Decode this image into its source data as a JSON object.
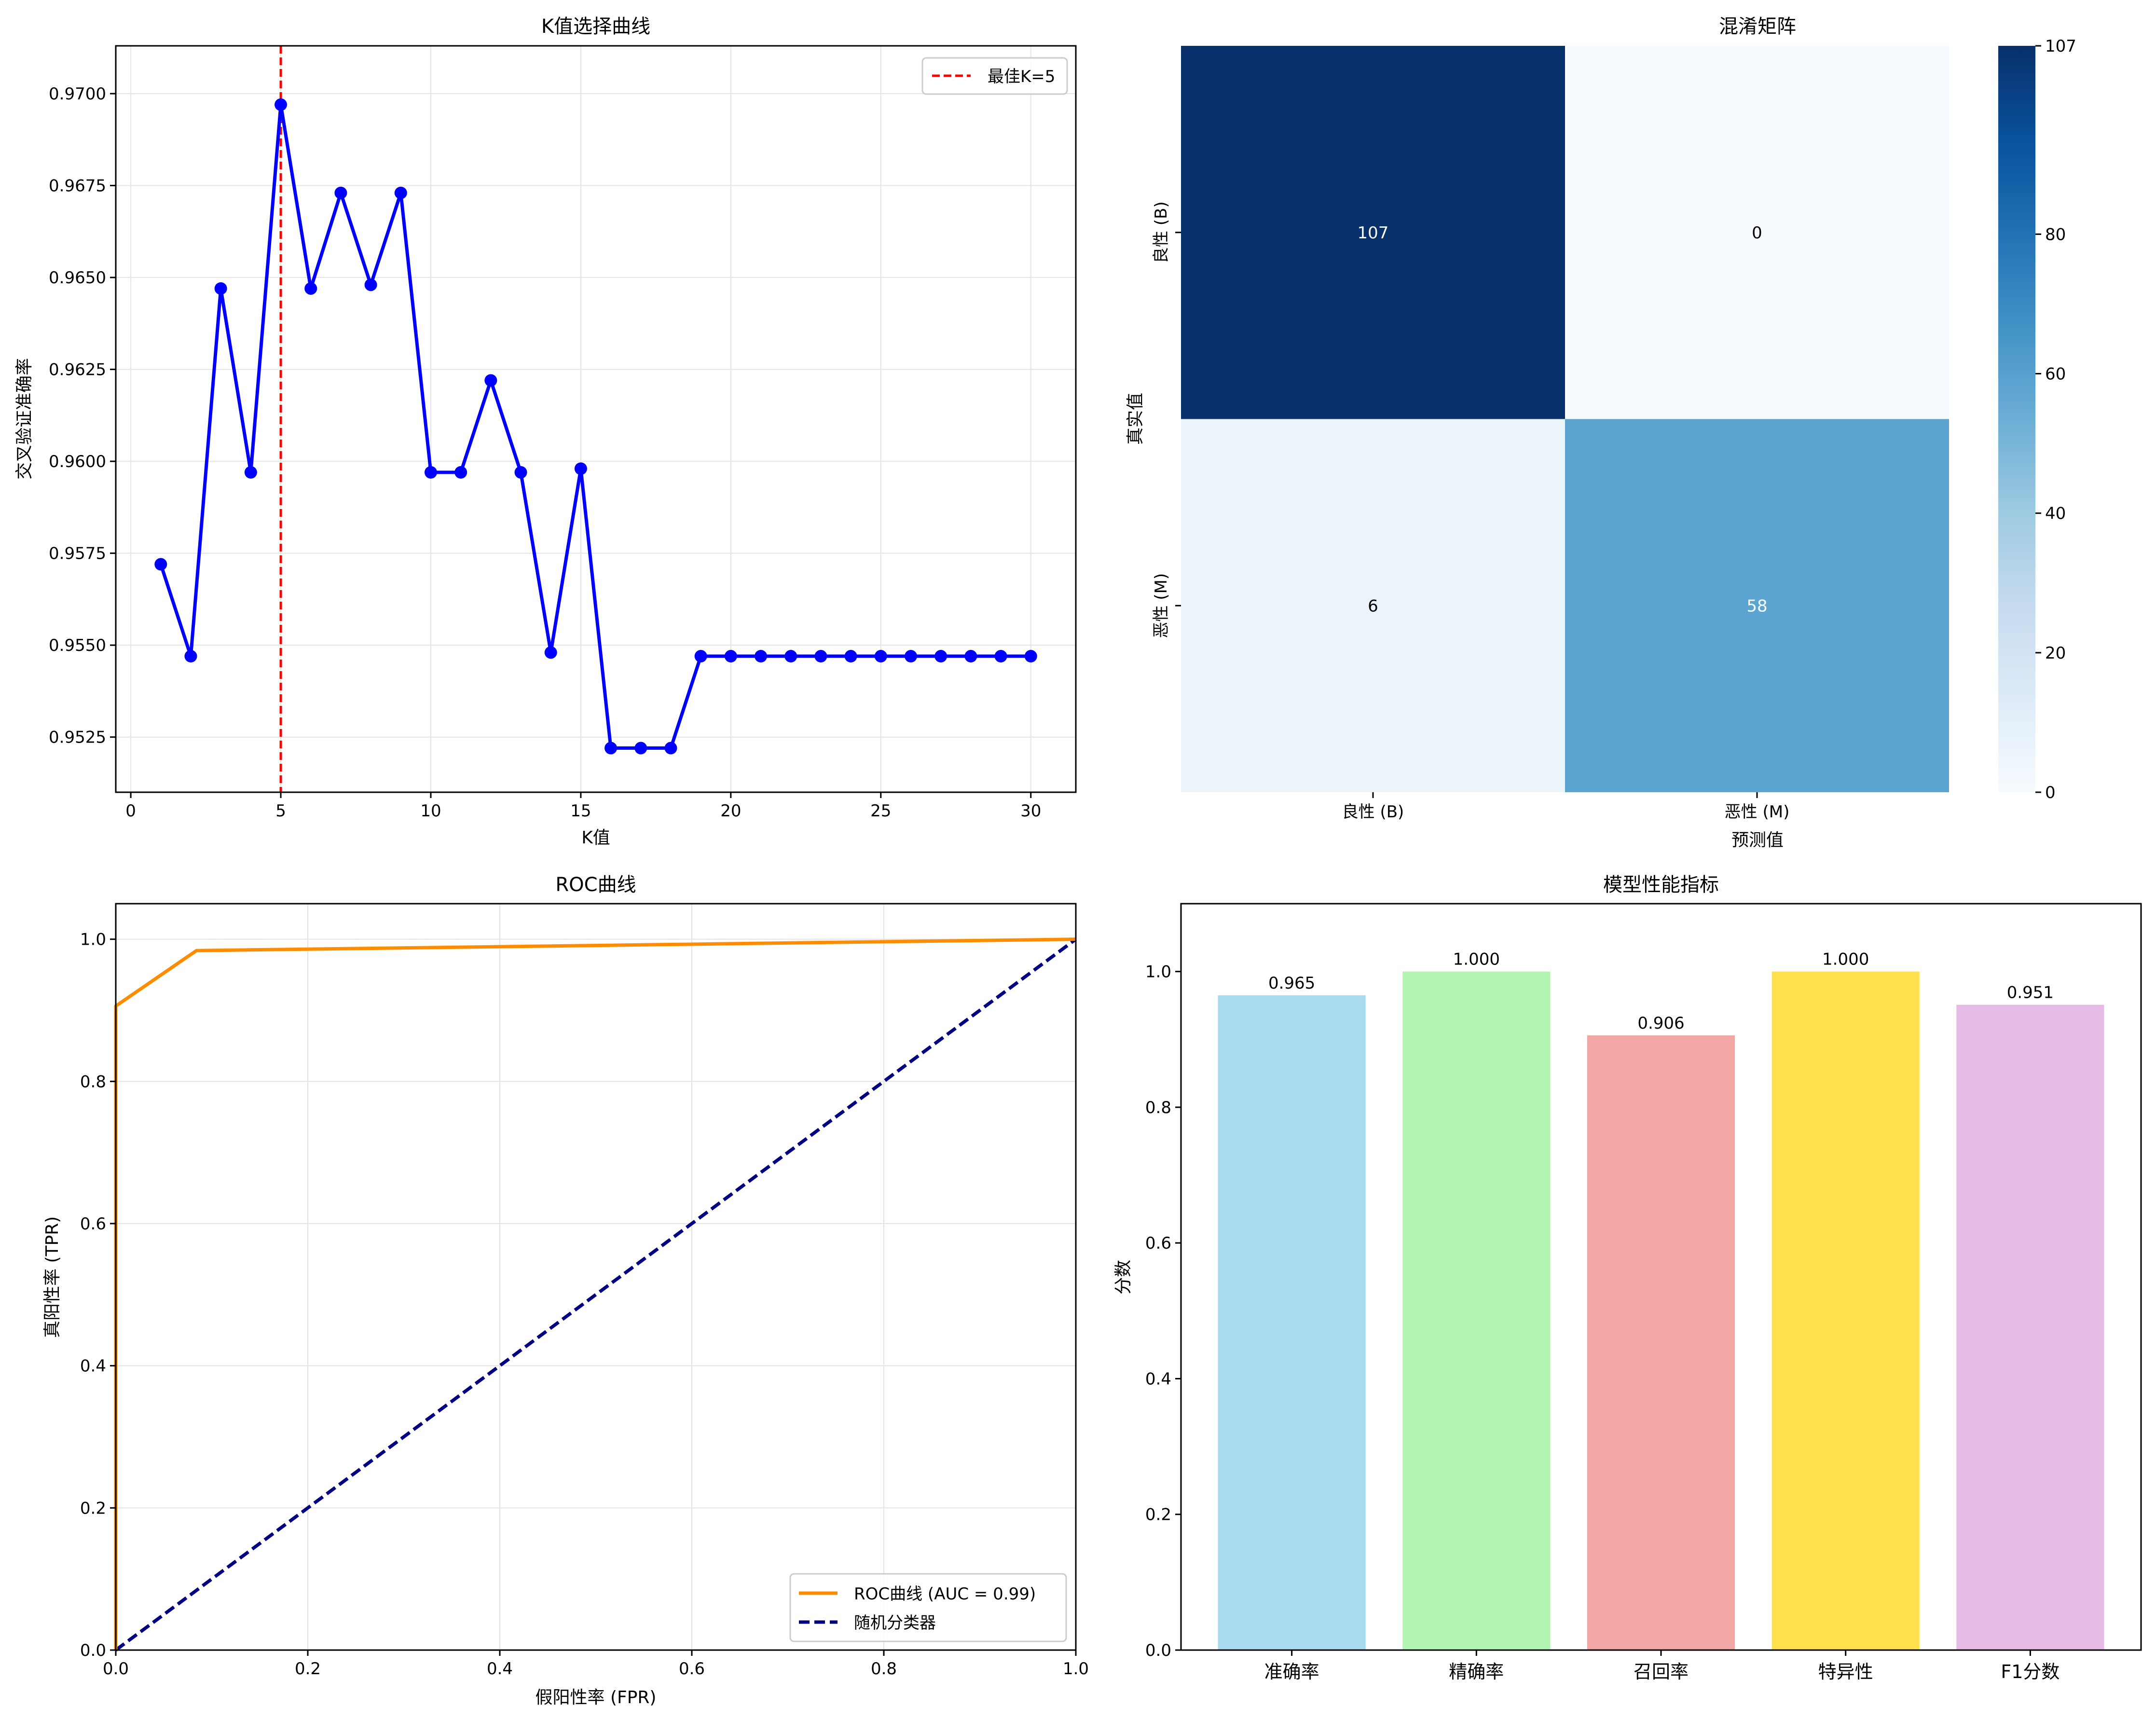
{
  "chart_data": [
    {
      "type": "line",
      "title": "K值选择曲线",
      "xlabel": "K值",
      "ylabel": "交叉验证准确率",
      "xlim": [
        -0.5,
        31.5
      ],
      "ylim": [
        0.951,
        0.9713
      ],
      "xticks": [
        0,
        5,
        10,
        15,
        20,
        25,
        30
      ],
      "yticks": [
        0.9525,
        0.955,
        0.9575,
        0.96,
        0.9625,
        0.965,
        0.9675,
        0.97
      ],
      "grid": true,
      "legend": "top-right",
      "series": [
        {
          "color": "#0000ff",
          "x": [
            1,
            2,
            3,
            4,
            5,
            6,
            7,
            8,
            9,
            10,
            11,
            12,
            13,
            14,
            15,
            16,
            17,
            18,
            19,
            20,
            21,
            22,
            23,
            24,
            25,
            26,
            27,
            28,
            29,
            30
          ],
          "y": [
            0.9572,
            0.9547,
            0.9647,
            0.9597,
            0.9697,
            0.9647,
            0.9673,
            0.9648,
            0.9673,
            0.9597,
            0.9597,
            0.9622,
            0.9597,
            0.9548,
            0.9598,
            0.9522,
            0.9522,
            0.9522,
            0.9547,
            0.9547,
            0.9547,
            0.9547,
            0.9547,
            0.9547,
            0.9547,
            0.9547,
            0.9547,
            0.9547,
            0.9547,
            0.9547
          ]
        }
      ],
      "vline": {
        "x": 5,
        "label": "最佳K=5",
        "color": "#ff0000"
      }
    },
    {
      "type": "heatmap",
      "title": "混淆矩阵",
      "xlabel": "预测值",
      "ylabel": "真实值",
      "xcategories": [
        "良性 (B)",
        "恶性 (M)"
      ],
      "ycategories": [
        "良性 (B)",
        "恶性 (M)"
      ],
      "values": [
        [
          107,
          0
        ],
        [
          6,
          58
        ]
      ],
      "colorbar_ticks": [
        0,
        20,
        40,
        60,
        80,
        107
      ],
      "vmin": 0,
      "vmax": 107,
      "colormap": "Blues"
    },
    {
      "type": "line",
      "title": "ROC曲线",
      "xlabel": "假阳性率 (FPR)",
      "ylabel": "真阳性率 (TPR)",
      "xlim": [
        0,
        1
      ],
      "ylim": [
        0,
        1.05
      ],
      "xticks": [
        0.0,
        0.2,
        0.4,
        0.6,
        0.8,
        1.0
      ],
      "yticks": [
        0.0,
        0.2,
        0.4,
        0.6,
        0.8,
        1.0
      ],
      "grid": true,
      "legend": "bottom-right",
      "series": [
        {
          "name": "ROC曲线 (AUC = 0.99)",
          "color": "#ff8c00",
          "dash": false,
          "x": [
            0,
            0,
            0.084,
            1
          ],
          "y": [
            0,
            0.906,
            0.984,
            1.0
          ]
        },
        {
          "name": "随机分类器",
          "color": "#000080",
          "dash": true,
          "x": [
            0,
            1
          ],
          "y": [
            0,
            1
          ]
        }
      ]
    },
    {
      "type": "bar",
      "title": "模型性能指标",
      "xlabel": "",
      "ylabel": "分数",
      "ylim": [
        0,
        1.1
      ],
      "yticks": [
        0.0,
        0.2,
        0.4,
        0.6,
        0.8,
        1.0
      ],
      "categories": [
        "准确率",
        "精确率",
        "召回率",
        "特异性",
        "F1分数"
      ],
      "values": [
        0.965,
        1.0,
        0.906,
        1.0,
        0.951
      ],
      "labels": [
        "0.965",
        "1.000",
        "0.906",
        "1.000",
        "0.951"
      ],
      "colors": [
        "#a8dbed",
        "#b2f5b0",
        "#f2a6a6",
        "#ffe14d",
        "#e5bbe5"
      ]
    }
  ]
}
